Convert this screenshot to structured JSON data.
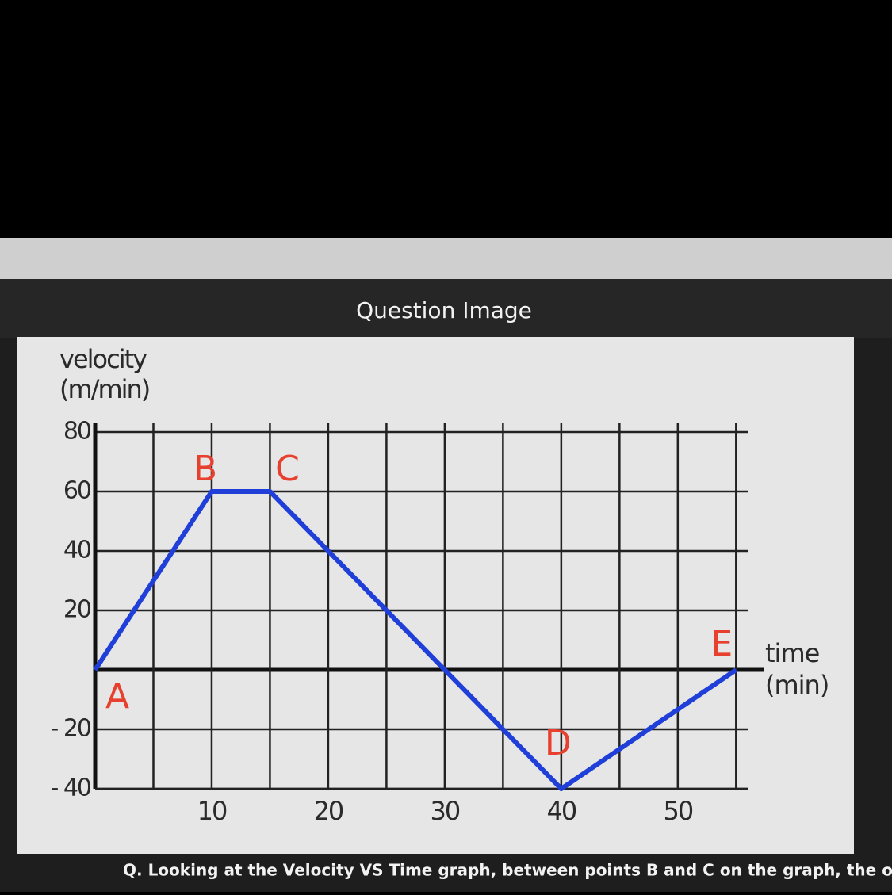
{
  "header": {
    "title": "Question Image"
  },
  "question": "Q. Looking at the Velocity VS Time graph, between points B and C on the graph, the object was",
  "chart_data": {
    "type": "line",
    "ylabel": [
      "velocity",
      "(m/min)"
    ],
    "xlabel": [
      "time",
      "(min)"
    ],
    "x": [
      0,
      10,
      15,
      40,
      55
    ],
    "series": [
      {
        "color": "#1f3fd8",
        "values": [
          0,
          60,
          60,
          -40,
          0
        ]
      }
    ],
    "point_labels": [
      "A",
      "B",
      "C",
      "D",
      "E"
    ],
    "point_label_color": "#e8402e",
    "xlim": [
      0,
      56
    ],
    "ylim": [
      -40,
      80
    ],
    "xticks": [
      10,
      20,
      30,
      40,
      50
    ],
    "xminorticks": [
      5,
      15,
      25,
      35,
      45,
      55
    ],
    "yticks": [
      80,
      60,
      40,
      20,
      {
        "value": -20,
        "label": "- 20"
      },
      {
        "value": -40,
        "label": "- 40"
      }
    ],
    "yaxis_lines": [
      0
    ],
    "grid": true
  }
}
